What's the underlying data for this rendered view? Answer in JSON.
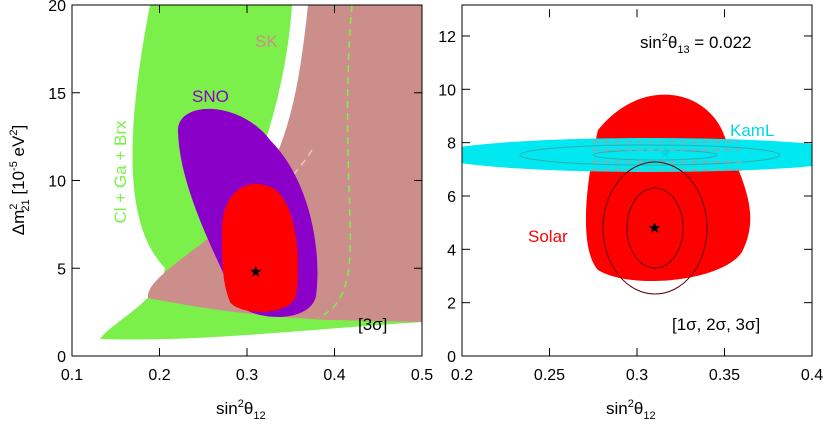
{
  "chart_data": [
    {
      "type": "contour",
      "x_label": [
        "sin",
        "2",
        "θ",
        "12"
      ],
      "y_label": [
        "Δm",
        "2",
        "21",
        " [10",
        "-5",
        " eV",
        "2",
        "]"
      ],
      "annotations": [
        "Cl + Ga + Brx",
        "SNO",
        "SK",
        "[3σ]"
      ],
      "xlim": [
        0.1,
        0.5
      ],
      "xticks": [
        0.1,
        0.2,
        0.3,
        0.4,
        0.5
      ],
      "ylim": [
        0,
        20
      ],
      "yticks": [
        0,
        5,
        10,
        15,
        20
      ],
      "best_fit": {
        "x": [
          0.31
        ],
        "y": [
          4.8
        ],
        "colors": [
          "#000000"
        ]
      }
    },
    {
      "type": "contour",
      "x_label": [
        "sin",
        "2",
        "θ",
        "12"
      ],
      "annotations": [
        "KamL",
        "Solar",
        "[1σ, 2σ, 3σ]"
      ],
      "setting": [
        "sin",
        "2",
        "θ",
        "13",
        " = 0.022"
      ],
      "xlim": [
        0.2,
        0.4
      ],
      "xticks": [
        0.2,
        0.25,
        0.3,
        0.35,
        0.4
      ],
      "ylim": [
        0,
        13
      ],
      "yticks": [
        0,
        2,
        4,
        6,
        8,
        10,
        12
      ],
      "best_fit": {
        "x": [
          0.31,
          0.316
        ],
        "y": [
          4.8,
          7.6
        ],
        "colors": [
          "#000000",
          "#00d8e0"
        ]
      }
    }
  ]
}
